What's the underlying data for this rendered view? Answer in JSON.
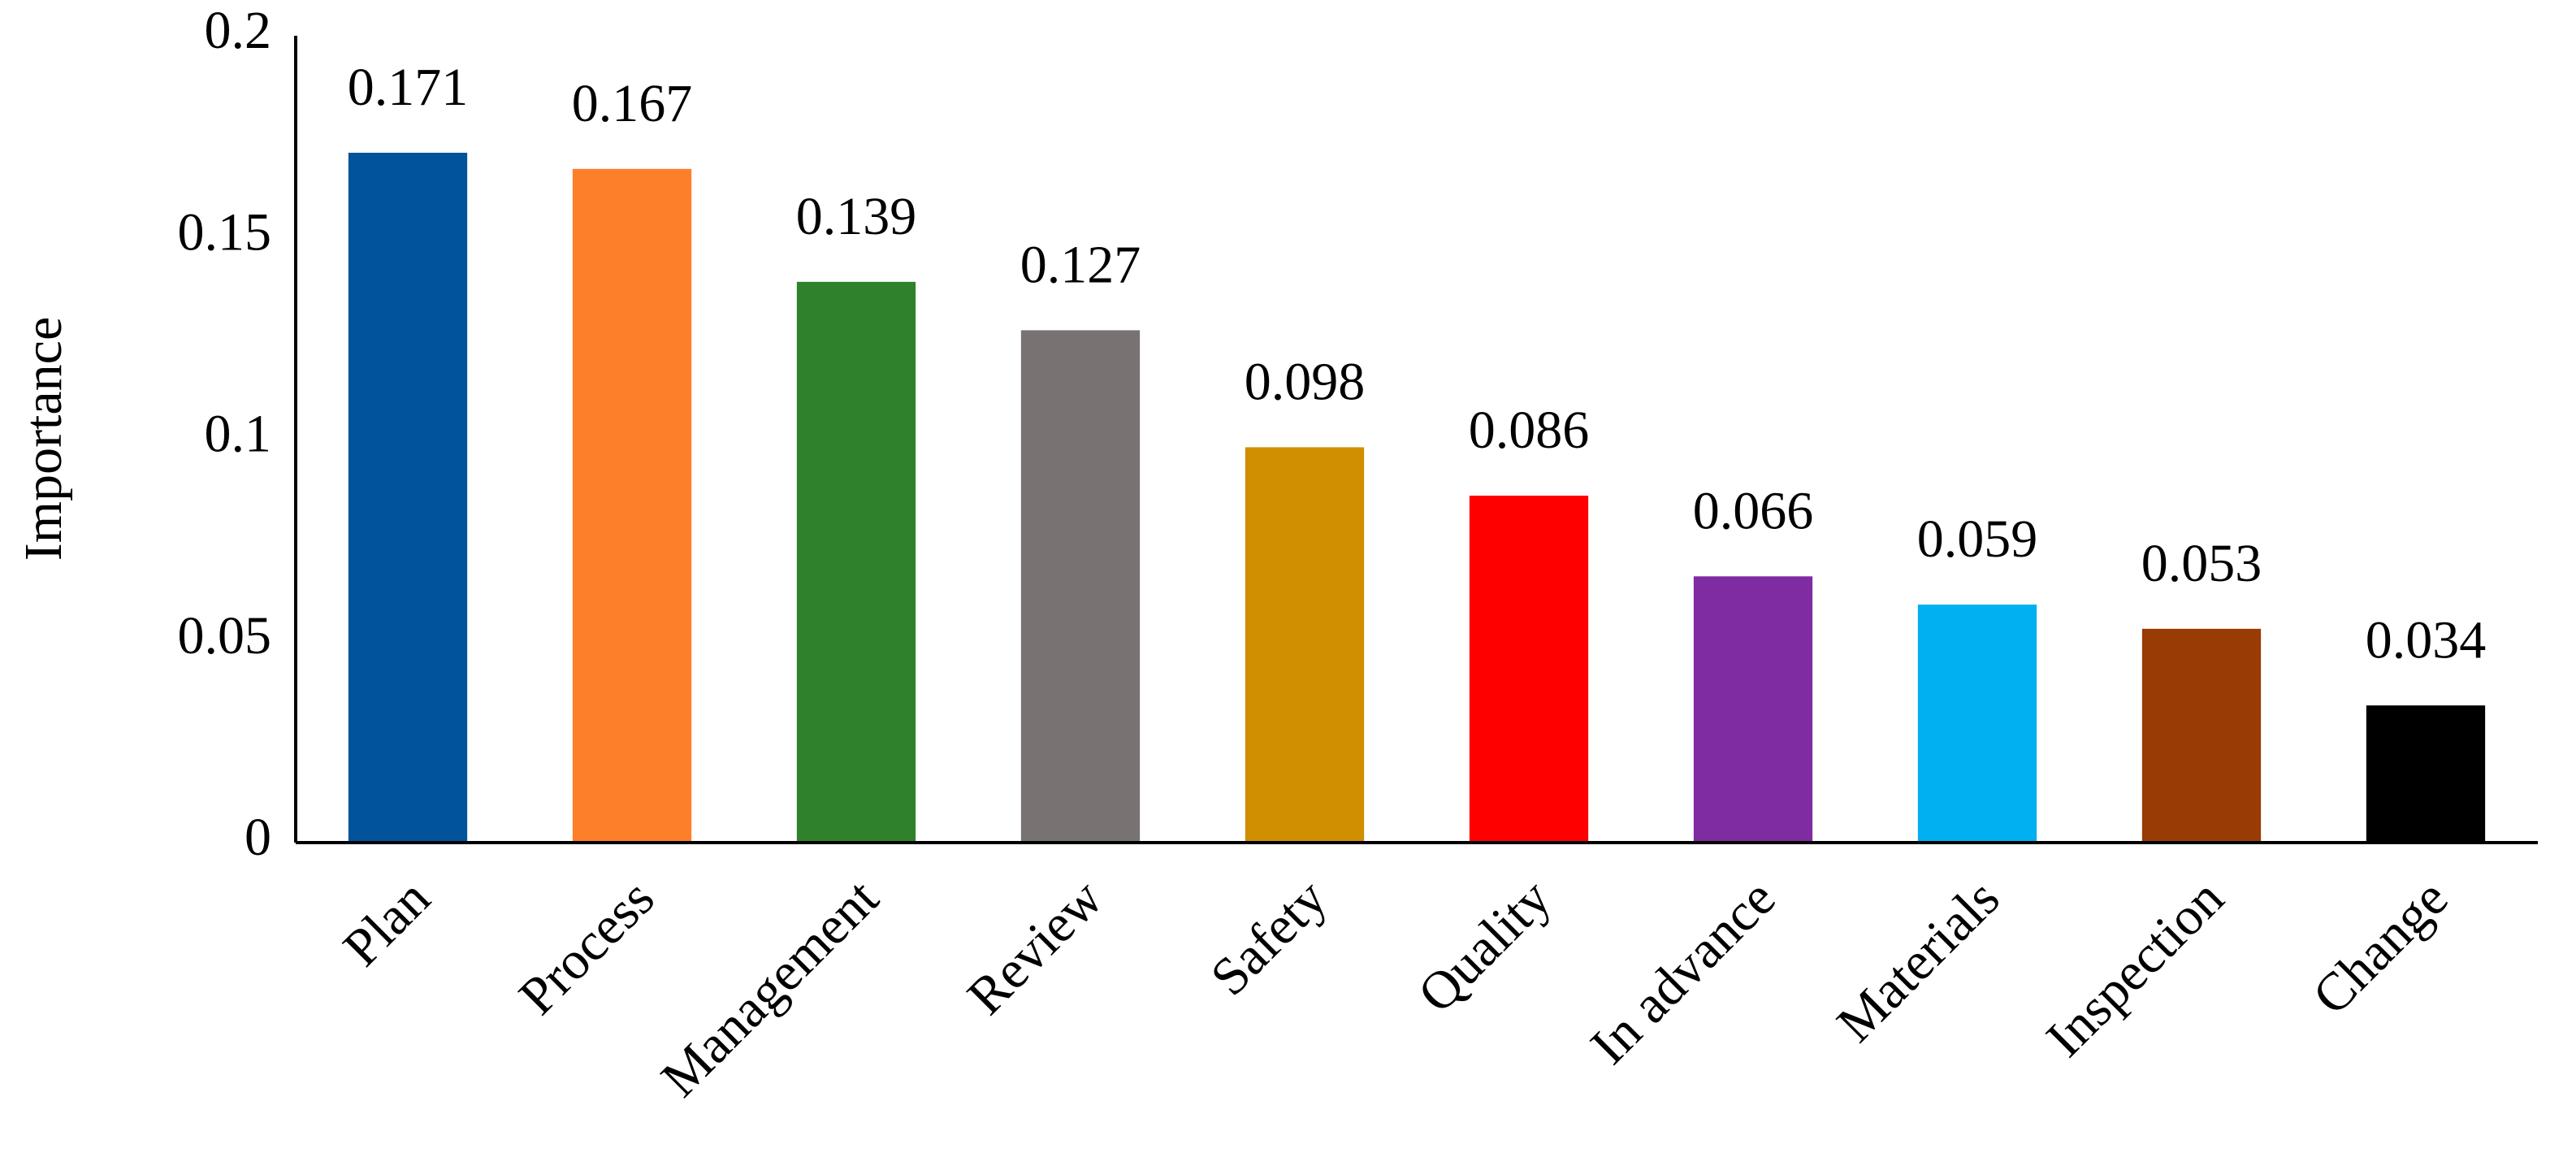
{
  "chart_data": {
    "type": "bar",
    "ylabel": "Importance",
    "categories": [
      "Plan",
      "Process",
      "Management",
      "Review",
      "Safety",
      "Quality",
      "In advance",
      "Materials",
      "Inspection",
      "Change"
    ],
    "values": [
      0.171,
      0.167,
      0.139,
      0.127,
      0.098,
      0.086,
      0.066,
      0.059,
      0.053,
      0.034
    ],
    "colors": [
      "#01539a",
      "#fe7f2a",
      "#2f822b",
      "#787372",
      "#cf8f00",
      "#ff0000",
      "#7f2ba1",
      "#00b0f0",
      "#983b05",
      "#000000"
    ],
    "ylim": [
      0,
      0.2
    ],
    "yticks": [
      0,
      0.05,
      0.1,
      0.15,
      0.2
    ],
    "grid": false
  }
}
